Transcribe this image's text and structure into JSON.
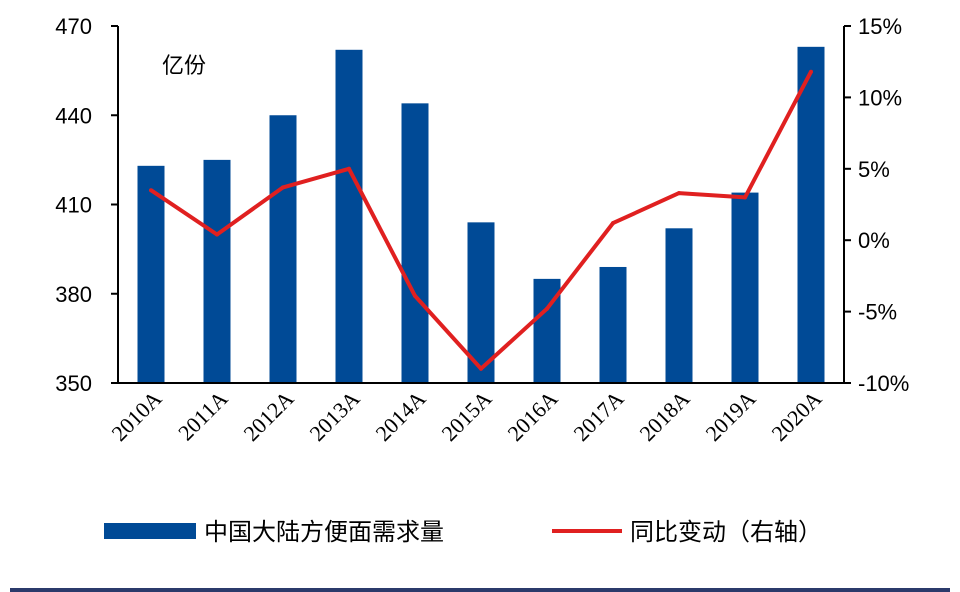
{
  "chart_data": {
    "type": "bar+line",
    "unit_label": "亿份",
    "categories": [
      "2010A",
      "2011A",
      "2012A",
      "2013A",
      "2014A",
      "2015A",
      "2016A",
      "2017A",
      "2018A",
      "2019A",
      "2020A"
    ],
    "series": [
      {
        "name": "中国大陆方便面需求量",
        "type": "bar",
        "axis": "left",
        "color": "#004a96",
        "values": [
          423,
          425,
          440,
          462,
          444,
          404,
          385,
          389,
          402,
          414,
          463
        ]
      },
      {
        "name": "同比变动（右轴）",
        "type": "line",
        "axis": "right",
        "color": "#e02020",
        "values": [
          3.5,
          0.4,
          3.7,
          5.0,
          -3.9,
          -9.0,
          -4.8,
          1.2,
          3.3,
          3.0,
          11.8
        ]
      }
    ],
    "y_left": {
      "min": 350,
      "max": 470,
      "ticks": [
        "350",
        "380",
        "410",
        "440",
        "470"
      ],
      "tick_values": [
        350,
        380,
        410,
        440,
        470
      ]
    },
    "y_right": {
      "min": -10,
      "max": 15,
      "ticks": [
        "-10%",
        "-5%",
        "0%",
        "5%",
        "10%",
        "15%"
      ],
      "tick_values": [
        -10,
        -5,
        0,
        5,
        10,
        15
      ]
    },
    "grid": false,
    "legend_position": "bottom"
  }
}
